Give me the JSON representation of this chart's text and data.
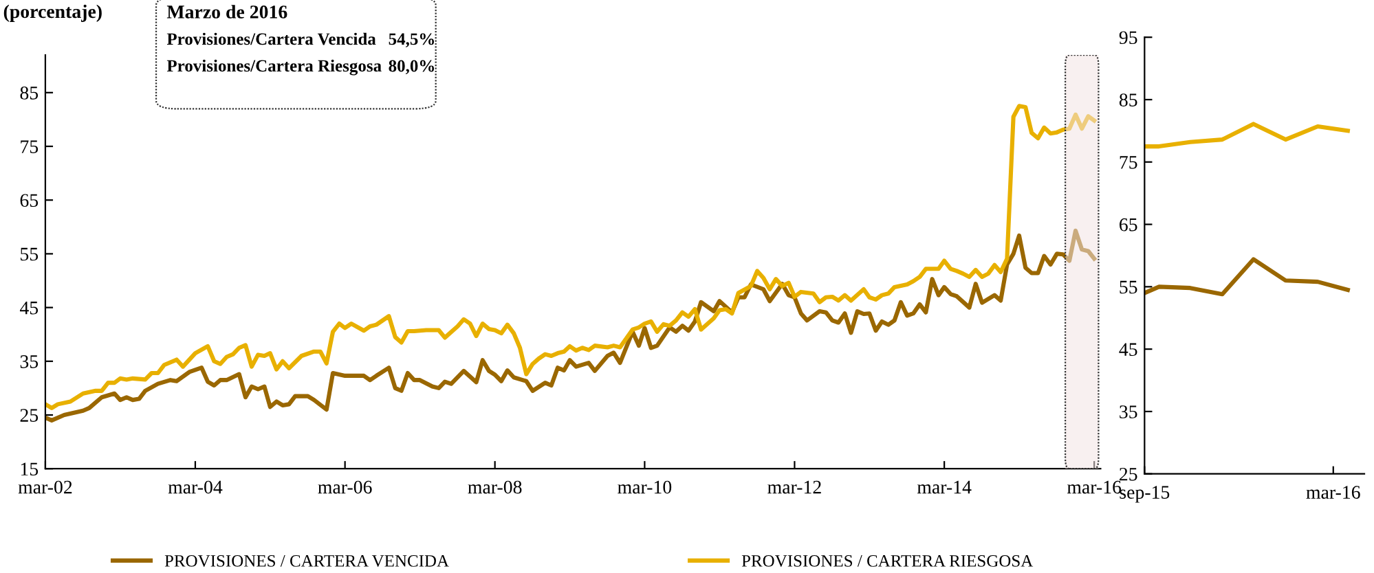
{
  "chart_data": [
    {
      "type": "line",
      "ylabel": "(porcentaje)",
      "legend": "bottom",
      "grid": false,
      "line_style": "solid",
      "marker": "none",
      "annotations": [
        "Marzo de 2016",
        "Provisiones/Cartera Vencida",
        "54,5%",
        "Provisiones/Cartera Riesgosa",
        "80,0%"
      ],
      "xlim": [
        "2002-03",
        "2016-04"
      ],
      "xticks": [
        {
          "value": "2002-03",
          "label": "mar-02"
        },
        {
          "value": "2004-03",
          "label": "mar-04"
        },
        {
          "value": "2006-03",
          "label": "mar-06"
        },
        {
          "value": "2008-03",
          "label": "mar-08"
        },
        {
          "value": "2010-03",
          "label": "mar-10"
        },
        {
          "value": "2012-03",
          "label": "mar-12"
        },
        {
          "value": "2014-03",
          "label": "mar-14"
        },
        {
          "value": "2016-03",
          "label": "mar-16"
        }
      ],
      "ylim": [
        15,
        92
      ],
      "yticks": [
        15,
        25,
        35,
        45,
        55,
        65,
        75,
        85
      ],
      "bands": [
        {
          "axis": "x",
          "from": "2015-10-12",
          "to": "2016-03-22",
          "color": "#f2e4e4"
        }
      ],
      "series": [
        {
          "name": "PROVISIONES / CARTERA VENCIDA",
          "color": "#9a6700",
          "x": [
            "2002-03",
            "2002-04",
            "2002-06",
            "2002-09",
            "2002-10",
            "2002-12",
            "2003-02",
            "2003-03",
            "2003-04",
            "2003-05",
            "2003-06",
            "2003-07",
            "2003-09",
            "2003-11",
            "2003-12",
            "2004-02",
            "2004-04",
            "2004-05",
            "2004-06",
            "2004-07",
            "2004-08",
            "2004-10",
            "2004-11",
            "2004-12",
            "2005-01",
            "2005-02",
            "2005-03",
            "2005-04",
            "2005-05",
            "2005-06",
            "2005-07",
            "2005-09",
            "2005-10",
            "2005-12",
            "2006-01",
            "2006-03",
            "2006-06",
            "2006-07",
            "2006-08",
            "2006-10",
            "2006-11",
            "2006-12",
            "2007-01",
            "2007-02",
            "2007-03",
            "2007-05",
            "2007-06",
            "2007-07",
            "2007-08",
            "2007-10",
            "2007-12",
            "2008-01",
            "2008-02",
            "2008-03",
            "2008-04",
            "2008-05",
            "2008-06",
            "2008-08",
            "2008-09",
            "2008-11",
            "2008-12",
            "2009-01",
            "2009-02",
            "2009-03",
            "2009-04",
            "2009-06",
            "2009-07",
            "2009-09",
            "2009-10",
            "2009-11",
            "2010-01",
            "2010-02",
            "2010-03",
            "2010-04",
            "2010-05",
            "2010-07",
            "2010-08",
            "2010-09",
            "2010-10",
            "2010-11",
            "2010-12",
            "2011-02",
            "2011-03",
            "2011-05",
            "2011-06",
            "2011-07",
            "2011-08",
            "2011-10",
            "2011-11",
            "2012-01",
            "2012-02",
            "2012-03",
            "2012-04",
            "2012-05",
            "2012-07",
            "2012-08",
            "2012-09",
            "2012-10",
            "2012-11",
            "2012-12",
            "2013-01",
            "2013-02",
            "2013-03",
            "2013-04",
            "2013-05",
            "2013-06",
            "2013-07",
            "2013-08",
            "2013-09",
            "2013-10",
            "2013-11",
            "2013-12",
            "2014-01",
            "2014-02",
            "2014-03",
            "2014-04",
            "2014-05",
            "2014-07",
            "2014-08",
            "2014-09",
            "2014-11",
            "2014-12",
            "2015-01",
            "2015-02",
            "2015-03",
            "2015-04",
            "2015-05",
            "2015-06",
            "2015-07",
            "2015-08",
            "2015-09",
            "2015-10",
            "2015-11",
            "2015-12",
            "2016-01",
            "2016-02",
            "2016-03"
          ],
          "values": [
            24.5,
            24,
            25,
            25.8,
            26.3,
            28.3,
            29,
            27.8,
            28.3,
            27.8,
            28,
            29.5,
            30.8,
            31.5,
            31.3,
            33,
            33.8,
            31.2,
            30.5,
            31.5,
            31.5,
            32.6,
            28.3,
            30.3,
            29.8,
            30.3,
            26.5,
            27.5,
            26.8,
            27,
            28.5,
            28.5,
            27.8,
            26,
            32.8,
            32.3,
            32.3,
            31.5,
            32.3,
            33.8,
            30,
            29.5,
            32.8,
            31.5,
            31.5,
            30.3,
            30,
            31.2,
            30.8,
            33.2,
            31.1,
            35.2,
            33.2,
            32.5,
            31.3,
            33.3,
            32,
            31.3,
            29.5,
            31,
            30.5,
            33.8,
            33.3,
            35.2,
            34,
            34.7,
            33.2,
            36,
            36.6,
            34.7,
            40.5,
            37.9,
            41.2,
            37.5,
            37.9,
            41.3,
            40.5,
            41.6,
            40.7,
            42.4,
            46,
            44.3,
            46.2,
            44.1,
            46.9,
            46.9,
            49.3,
            48.4,
            46.2,
            49.4,
            47.3,
            46.9,
            43.9,
            42.6,
            44.3,
            44.1,
            42.6,
            42.2,
            43.9,
            40.3,
            44.3,
            43.8,
            43.9,
            40.7,
            42.4,
            41.8,
            42.6,
            46,
            43.5,
            43.9,
            45.6,
            44.1,
            50.3,
            47.3,
            48.8,
            47.5,
            47.1,
            45,
            49.4,
            45.9,
            47.3,
            46.3,
            53,
            55,
            58.4,
            52.4,
            51.4,
            51.4,
            54.6,
            53,
            55,
            54.9,
            53.7,
            59.3,
            55.8,
            55.5,
            54.1
          ]
        },
        {
          "name": "PROVISIONES / CARTERA RIESGOSA",
          "color": "#e8b000",
          "x": [
            "2002-03",
            "2002-04",
            "2002-05",
            "2002-07",
            "2002-09",
            "2002-11",
            "2002-12",
            "2003-01",
            "2003-02",
            "2003-03",
            "2003-04",
            "2003-05",
            "2003-07",
            "2003-08",
            "2003-09",
            "2003-10",
            "2003-12",
            "2004-01",
            "2004-03",
            "2004-05",
            "2004-06",
            "2004-07",
            "2004-08",
            "2004-09",
            "2004-10",
            "2004-11",
            "2004-12",
            "2005-01",
            "2005-02",
            "2005-03",
            "2005-04",
            "2005-05",
            "2005-06",
            "2005-08",
            "2005-10",
            "2005-11",
            "2005-12",
            "2006-01",
            "2006-02",
            "2006-03",
            "2006-04",
            "2006-06",
            "2006-07",
            "2006-08",
            "2006-10",
            "2006-11",
            "2006-12",
            "2007-01",
            "2007-02",
            "2007-04",
            "2007-06",
            "2007-07",
            "2007-09",
            "2007-10",
            "2007-11",
            "2007-12",
            "2008-01",
            "2008-02",
            "2008-03",
            "2008-04",
            "2008-05",
            "2008-06",
            "2008-07",
            "2008-08",
            "2008-09",
            "2008-10",
            "2008-11",
            "2008-12",
            "2009-01",
            "2009-02",
            "2009-03",
            "2009-04",
            "2009-05",
            "2009-06",
            "2009-07",
            "2009-09",
            "2009-10",
            "2009-11",
            "2010-01",
            "2010-02",
            "2010-03",
            "2010-04",
            "2010-05",
            "2010-06",
            "2010-07",
            "2010-08",
            "2010-09",
            "2010-10",
            "2010-11",
            "2010-12",
            "2011-02",
            "2011-03",
            "2011-04",
            "2011-05",
            "2011-06",
            "2011-08",
            "2011-09",
            "2011-10",
            "2011-11",
            "2011-12",
            "2012-01",
            "2012-02",
            "2012-03",
            "2012-04",
            "2012-06",
            "2012-07",
            "2012-08",
            "2012-09",
            "2012-10",
            "2012-11",
            "2012-12",
            "2013-02",
            "2013-03",
            "2013-04",
            "2013-05",
            "2013-06",
            "2013-07",
            "2013-09",
            "2013-10",
            "2013-11",
            "2013-12",
            "2014-02",
            "2014-03",
            "2014-04",
            "2014-05",
            "2014-06",
            "2014-07",
            "2014-08",
            "2014-09",
            "2014-10",
            "2014-11",
            "2014-12",
            "2015-01",
            "2015-02",
            "2015-03",
            "2015-04",
            "2015-05",
            "2015-06",
            "2015-07",
            "2015-08",
            "2015-09",
            "2015-10",
            "2015-11",
            "2015-12",
            "2016-01",
            "2016-02",
            "2016-03"
          ],
          "values": [
            27,
            26.3,
            27,
            27.5,
            29,
            29.5,
            29.5,
            31,
            31,
            31.8,
            31.6,
            31.8,
            31.6,
            32.8,
            32.8,
            34.3,
            35.3,
            34,
            36.5,
            37.8,
            35,
            34.5,
            35.8,
            36.3,
            37.5,
            38,
            34,
            36.2,
            36,
            36.5,
            33.5,
            35,
            33.7,
            36,
            36.8,
            36.8,
            34.6,
            40.5,
            42,
            41.2,
            42,
            40.7,
            41.5,
            41.8,
            43.4,
            39.5,
            38.5,
            40.6,
            40.6,
            40.8,
            40.8,
            39.4,
            41.5,
            42.8,
            42,
            39.7,
            42,
            41,
            40.8,
            40.2,
            41.8,
            40.2,
            37.5,
            32.6,
            34.5,
            35.5,
            36.3,
            36,
            36.5,
            36.8,
            37.8,
            37,
            37.5,
            37.1,
            37.9,
            37.6,
            37.9,
            37.6,
            40.9,
            41.3,
            42,
            42.4,
            40.5,
            41.9,
            41.6,
            42.6,
            44.1,
            43.3,
            44.7,
            40.9,
            43,
            44.5,
            44.7,
            43.9,
            47.7,
            49,
            51.8,
            50.5,
            48.4,
            50.3,
            49,
            49.6,
            47,
            47.9,
            47.6,
            46,
            46.9,
            47,
            46.3,
            47.3,
            46.3,
            48.4,
            46.9,
            46.5,
            47.3,
            47.6,
            48.8,
            49.3,
            49.9,
            50.7,
            52.2,
            52.2,
            53.7,
            52.2,
            51.8,
            51.3,
            50.7,
            52,
            50.7,
            51.3,
            52.9,
            51.6,
            54.1,
            80.5,
            82.5,
            82.3,
            77.5,
            76.5,
            78.5,
            77.4,
            77.6,
            78.1,
            78.3,
            80.9,
            78.3,
            80.6,
            79.8
          ]
        }
      ]
    },
    {
      "type": "line",
      "grid": false,
      "line_style": "solid",
      "marker": "none",
      "xlim": [
        "2015-09-01",
        "2016-03-31"
      ],
      "xticks": [
        {
          "value": "2015-09-01",
          "label": "sep-15"
        },
        {
          "value": "2016-03-01",
          "label": "mar-16"
        }
      ],
      "ylim": [
        25,
        95
      ],
      "yticks": [
        25,
        35,
        45,
        55,
        65,
        75,
        85,
        95
      ],
      "series": [
        {
          "color": "#9a6700",
          "x": [
            "2015-09-01",
            "2015-09-15",
            "2015-10-15",
            "2015-11-15",
            "2015-12-15",
            "2016-01-15",
            "2016-02-15",
            "2016-03-15"
          ],
          "values": [
            54.0,
            55.0,
            54.8,
            53.8,
            59.4,
            56.0,
            55.8,
            54.5
          ]
        },
        {
          "color": "#e8b000",
          "x": [
            "2015-09-01",
            "2015-09-15",
            "2015-10-15",
            "2015-11-15",
            "2015-12-15",
            "2016-01-15",
            "2016-02-15",
            "2016-03-15"
          ],
          "values": [
            77.5,
            77.5,
            78.2,
            78.6,
            81.1,
            78.6,
            80.7,
            80.0
          ]
        }
      ]
    }
  ]
}
